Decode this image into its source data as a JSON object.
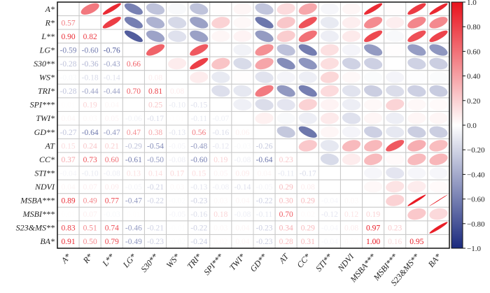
{
  "chart_data": {
    "type": "heatmap",
    "subtype": "correlation-matrix",
    "lower_triangle": "numbers",
    "upper_triangle": "ellipses",
    "variables": [
      "A*",
      "R*",
      "L**",
      "LG*",
      "S30**",
      "WS*",
      "TRI*",
      "SPI***",
      "TWI*",
      "GD**",
      "AT",
      "CC*",
      "STI**",
      "NDVI",
      "MSBA***",
      "MSBI***",
      "S23&MS**",
      "BA*"
    ],
    "lower": [
      [],
      [
        0.57
      ],
      [
        0.9,
        0.82
      ],
      [
        -0.59,
        -0.6,
        -0.76
      ],
      [
        -0.28,
        -0.36,
        -0.43,
        0.66
      ],
      [
        -0.03,
        -0.18,
        -0.14,
        0.0,
        0.08
      ],
      [
        -0.28,
        -0.44,
        -0.44,
        0.7,
        0.81,
        0.08
      ],
      [
        0.01,
        0.19,
        0.04,
        0.0,
        0.25,
        -0.1,
        -0.15
      ],
      [
        0.04,
        0.03,
        0.05,
        -0.06,
        -0.17,
        0.01,
        -0.11,
        -0.07
      ],
      [
        -0.27,
        -0.64,
        -0.47,
        0.47,
        0.38,
        -0.13,
        0.56,
        -0.16,
        0.06
      ],
      [
        0.15,
        0.24,
        0.21,
        -0.29,
        -0.54,
        -0.05,
        -0.48,
        -0.12,
        -0.03,
        -0.26
      ],
      [
        0.37,
        0.73,
        0.6,
        -0.61,
        -0.5,
        -0.08,
        -0.6,
        0.19,
        -0.08,
        -0.64,
        0.23
      ],
      [
        -0.04,
        -0.1,
        -0.08,
        0.13,
        0.14,
        0.17,
        0.15,
        0.05,
        0.09,
        0.04,
        -0.11,
        -0.17
      ],
      [
        0.04,
        0.07,
        0.09,
        -0.05,
        -0.21,
        0.03,
        -0.13,
        -0.08,
        -0.14,
        -0.05,
        0.29,
        0.08,
        0.0
      ],
      [
        0.89,
        0.49,
        0.77,
        -0.47,
        -0.22,
        -0.02,
        -0.23,
        0.03,
        0.04,
        -0.22,
        0.3,
        0.29,
        -0.04,
        0.03
      ],
      [
        0.01,
        0.07,
        -0.03,
        0.01,
        0.0,
        -0.05,
        -0.16,
        0.18,
        -0.08,
        -0.11,
        0.7,
        0.02,
        -0.12,
        0.12,
        0.19
      ],
      [
        0.83,
        0.51,
        0.74,
        -0.46,
        -0.21,
        -0.01,
        -0.22,
        0.03,
        0.04,
        -0.23,
        0.34,
        0.29,
        -0.04,
        0.08,
        0.97,
        0.23
      ],
      [
        0.91,
        0.5,
        0.79,
        -0.49,
        -0.23,
        -0.02,
        -0.24,
        0.02,
        0.04,
        -0.23,
        0.28,
        0.31,
        -0.04,
        0.02,
        1.0,
        0.16,
        0.95
      ]
    ],
    "colorbar": {
      "range": [
        -1.0,
        1.0
      ],
      "ticks": [
        "1.0",
        "0.80",
        "0.60",
        "0.40",
        "0.20",
        "0.0",
        "-0.20",
        "-0.40",
        "-0.60",
        "-0.80",
        "-1.0"
      ],
      "colors": {
        "positive": "#e8121c",
        "zero": "#ffffff",
        "negative": "#1b2a7e"
      }
    }
  }
}
